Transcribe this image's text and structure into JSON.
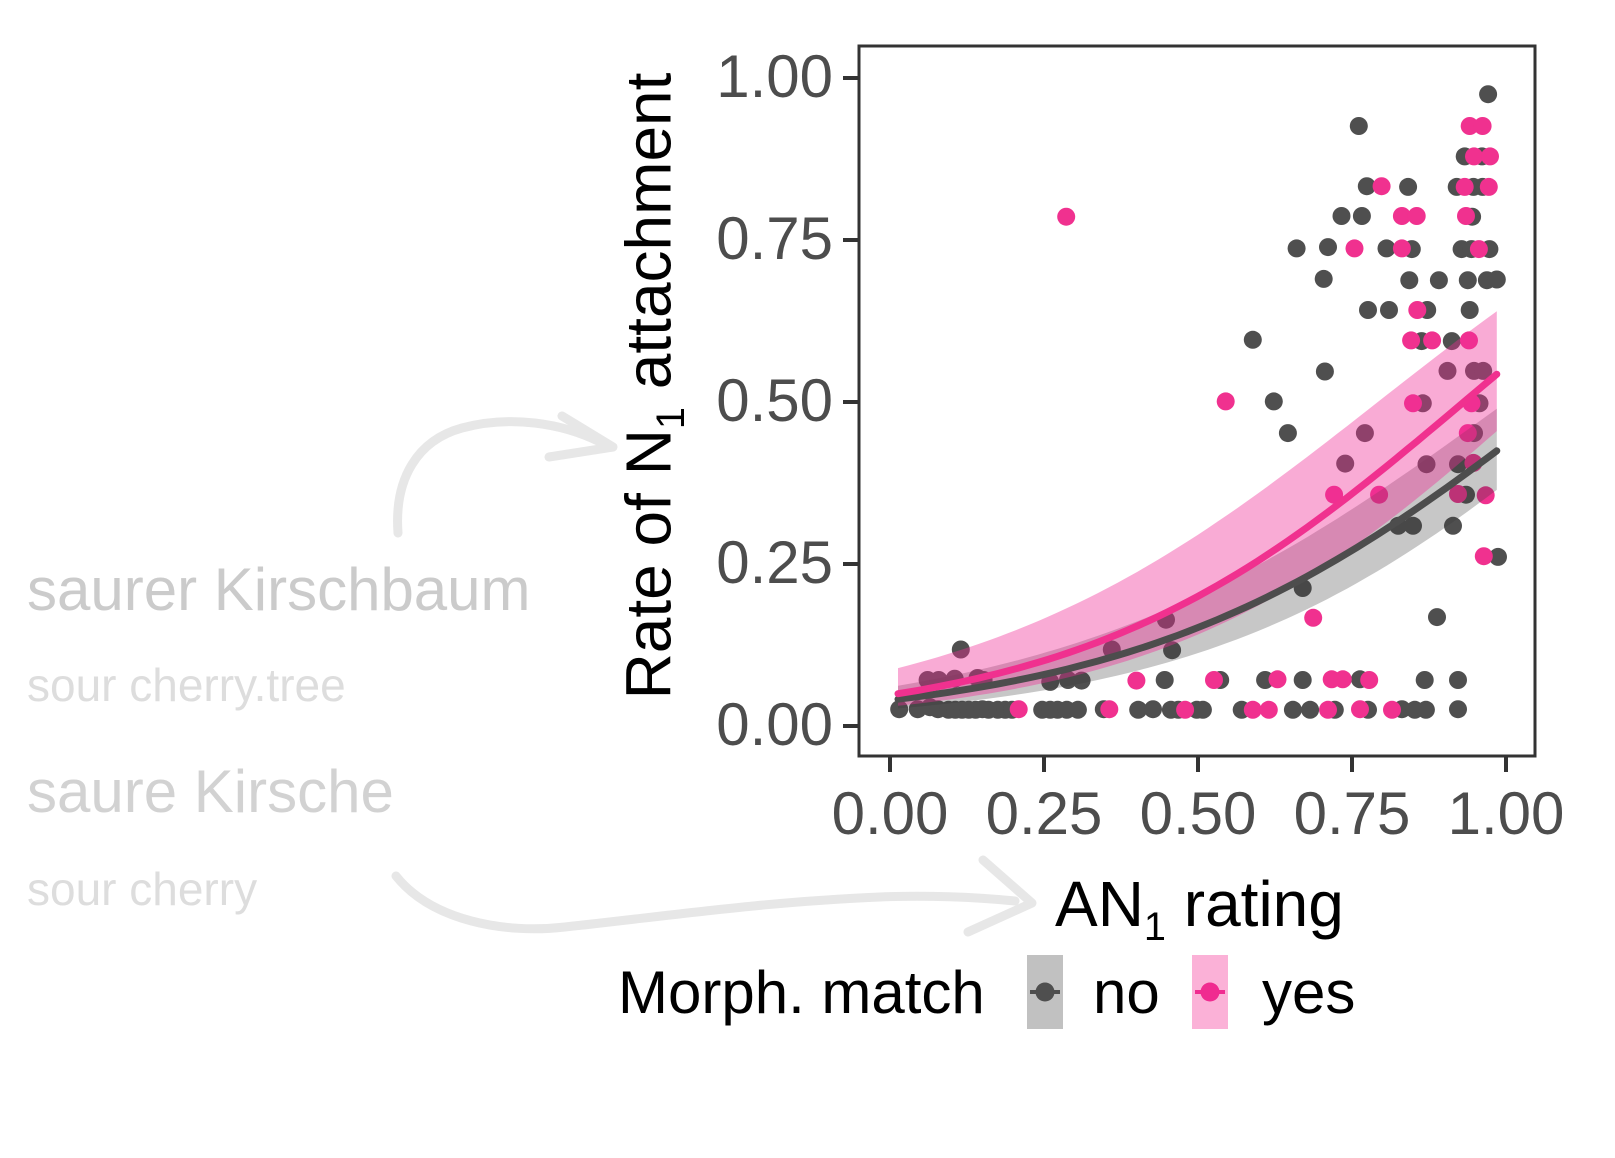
{
  "annotations": {
    "german_tree": "saurer Kirschbaum",
    "gloss_tree": "sour cherry.tree",
    "german_fruit": "saure Kirsche",
    "gloss_fruit": "sour cherry"
  },
  "axes": {
    "y_title_main": "Rate of N",
    "y_title_sub": "1",
    "y_title_rest": " attachment",
    "x_title_main": "AN",
    "x_title_sub": "1",
    "x_title_rest": " rating"
  },
  "legend": {
    "title": "Morph. match",
    "items": [
      {
        "label": "no",
        "key_bg": "#C1C1C1",
        "key_fg": "#4F4F4F"
      },
      {
        "label": "yes",
        "key_bg": "#FBB1D7",
        "key_fg": "#F02B90"
      }
    ]
  },
  "colors": {
    "gray_point": "#4F4F4F",
    "pink_point": "#F0318F",
    "gray_line": "#4D4D4D",
    "pink_line": "#F0318F",
    "gray_ribbon": "rgba(55,55,55,0.28)",
    "pink_ribbon": "rgba(240,45,150,0.40)",
    "axis_text": "#4D4D4D",
    "panel_border": "#333333",
    "tick_mark": "#333333",
    "arrow": "#E7E7E7"
  },
  "chart_data": {
    "type": "scatter",
    "title": "",
    "xlabel": "AN1 rating",
    "ylabel": "Rate of N1 attachment",
    "xlim": [
      0,
      1
    ],
    "ylim": [
      0,
      1
    ],
    "grid": false,
    "legend_position": "bottom",
    "legend_title": "Morph. match",
    "x_ticks": [
      0.0,
      0.25,
      0.5,
      0.75,
      1.0
    ],
    "x_tick_labels": [
      "0.00",
      "0.25",
      "0.50",
      "0.75",
      "1.00"
    ],
    "y_ticks": [
      0.0,
      0.25,
      0.5,
      0.75,
      1.0
    ],
    "y_tick_labels": [
      "0.00",
      "0.25",
      "0.50",
      "0.75",
      "1.00"
    ],
    "fit_model": "logistic y = 1/(1+exp(-(a+b*x))) with confidence ribbon",
    "fit_x_range": [
      0.013,
      0.985
    ],
    "series": [
      {
        "name": "no",
        "fit": {
          "a": -3.18,
          "b": 2.92,
          "upper": {
            "a": -2.75,
            "b": 2.75
          },
          "lower": {
            "a": -3.62,
            "b": 3.11
          }
        },
        "points": [
          [
            0.971,
            0.975
          ],
          [
            0.761,
            0.926
          ],
          [
            0.933,
            0.879
          ],
          [
            0.961,
            0.879
          ],
          [
            0.774,
            0.833
          ],
          [
            0.841,
            0.832
          ],
          [
            0.92,
            0.832
          ],
          [
            0.947,
            0.832
          ],
          [
            0.962,
            0.832
          ],
          [
            0.733,
            0.787
          ],
          [
            0.766,
            0.787
          ],
          [
            0.945,
            0.786
          ],
          [
            0.66,
            0.737
          ],
          [
            0.711,
            0.739
          ],
          [
            0.806,
            0.737
          ],
          [
            0.847,
            0.736
          ],
          [
            0.928,
            0.736
          ],
          [
            0.944,
            0.736
          ],
          [
            0.973,
            0.736
          ],
          [
            0.704,
            0.69
          ],
          [
            0.843,
            0.688
          ],
          [
            0.891,
            0.688
          ],
          [
            0.938,
            0.688
          ],
          [
            0.969,
            0.688
          ],
          [
            0.985,
            0.689
          ],
          [
            0.776,
            0.642
          ],
          [
            0.81,
            0.642
          ],
          [
            0.872,
            0.642
          ],
          [
            0.941,
            0.642
          ],
          [
            0.589,
            0.596
          ],
          [
            0.863,
            0.594
          ],
          [
            0.912,
            0.594
          ],
          [
            0.706,
            0.547
          ],
          [
            0.905,
            0.548
          ],
          [
            0.948,
            0.548
          ],
          [
            0.963,
            0.548
          ],
          [
            0.623,
            0.501
          ],
          [
            0.865,
            0.498
          ],
          [
            0.957,
            0.498
          ],
          [
            0.646,
            0.452
          ],
          [
            0.771,
            0.452
          ],
          [
            0.948,
            0.452
          ],
          [
            0.739,
            0.405
          ],
          [
            0.871,
            0.404
          ],
          [
            0.922,
            0.404
          ],
          [
            0.935,
            0.357
          ],
          [
            0.825,
            0.309
          ],
          [
            0.849,
            0.309
          ],
          [
            0.914,
            0.309
          ],
          [
            0.987,
            0.261
          ],
          [
            0.67,
            0.213
          ],
          [
            0.888,
            0.168
          ],
          [
            0.448,
            0.164
          ],
          [
            0.115,
            0.118
          ],
          [
            0.36,
            0.118
          ],
          [
            0.458,
            0.117
          ],
          [
            0.061,
            0.071
          ],
          [
            0.079,
            0.071
          ],
          [
            0.105,
            0.073
          ],
          [
            0.142,
            0.074
          ],
          [
            0.152,
            0.071
          ],
          [
            0.26,
            0.068
          ],
          [
            0.289,
            0.071
          ],
          [
            0.311,
            0.07
          ],
          [
            0.446,
            0.071
          ],
          [
            0.536,
            0.071
          ],
          [
            0.609,
            0.071
          ],
          [
            0.67,
            0.071
          ],
          [
            0.763,
            0.072
          ],
          [
            0.868,
            0.071
          ],
          [
            0.922,
            0.071
          ],
          [
            0.015,
            0.026
          ],
          [
            0.045,
            0.026
          ],
          [
            0.065,
            0.029
          ],
          [
            0.078,
            0.026
          ],
          [
            0.095,
            0.025
          ],
          [
            0.106,
            0.025
          ],
          [
            0.117,
            0.025
          ],
          [
            0.128,
            0.025
          ],
          [
            0.139,
            0.025
          ],
          [
            0.15,
            0.026
          ],
          [
            0.16,
            0.025
          ],
          [
            0.175,
            0.025
          ],
          [
            0.187,
            0.025
          ],
          [
            0.198,
            0.025
          ],
          [
            0.247,
            0.025
          ],
          [
            0.26,
            0.025
          ],
          [
            0.272,
            0.025
          ],
          [
            0.287,
            0.025
          ],
          [
            0.305,
            0.025
          ],
          [
            0.347,
            0.026
          ],
          [
            0.403,
            0.025
          ],
          [
            0.427,
            0.026
          ],
          [
            0.456,
            0.025
          ],
          [
            0.468,
            0.025
          ],
          [
            0.498,
            0.025
          ],
          [
            0.508,
            0.025
          ],
          [
            0.571,
            0.025
          ],
          [
            0.654,
            0.025
          ],
          [
            0.682,
            0.025
          ],
          [
            0.722,
            0.025
          ],
          [
            0.776,
            0.025
          ],
          [
            0.831,
            0.026
          ],
          [
            0.852,
            0.025
          ],
          [
            0.87,
            0.025
          ],
          [
            0.922,
            0.026
          ]
        ]
      },
      {
        "name": "yes",
        "fit": {
          "a": -2.99,
          "b": 3.21,
          "upper": {
            "a": -2.36,
            "b": 2.98
          },
          "lower": {
            "a": -3.48,
            "b": 3.35
          }
        },
        "points": [
          [
            0.286,
            0.786
          ],
          [
            0.941,
            0.926
          ],
          [
            0.962,
            0.926
          ],
          [
            0.948,
            0.879
          ],
          [
            0.974,
            0.879
          ],
          [
            0.798,
            0.833
          ],
          [
            0.933,
            0.832
          ],
          [
            0.972,
            0.832
          ],
          [
            0.831,
            0.787
          ],
          [
            0.855,
            0.787
          ],
          [
            0.935,
            0.787
          ],
          [
            0.754,
            0.737
          ],
          [
            0.831,
            0.737
          ],
          [
            0.956,
            0.736
          ],
          [
            0.856,
            0.642
          ],
          [
            0.846,
            0.595
          ],
          [
            0.88,
            0.595
          ],
          [
            0.94,
            0.595
          ],
          [
            0.545,
            0.501
          ],
          [
            0.849,
            0.498
          ],
          [
            0.944,
            0.498
          ],
          [
            0.938,
            0.452
          ],
          [
            0.947,
            0.406
          ],
          [
            0.721,
            0.357
          ],
          [
            0.794,
            0.357
          ],
          [
            0.922,
            0.358
          ],
          [
            0.967,
            0.356
          ],
          [
            0.964,
            0.262
          ],
          [
            0.687,
            0.167
          ],
          [
            0.4,
            0.07
          ],
          [
            0.526,
            0.071
          ],
          [
            0.629,
            0.072
          ],
          [
            0.717,
            0.072
          ],
          [
            0.735,
            0.072
          ],
          [
            0.778,
            0.071
          ],
          [
            0.209,
            0.026
          ],
          [
            0.356,
            0.026
          ],
          [
            0.479,
            0.025
          ],
          [
            0.589,
            0.025
          ],
          [
            0.615,
            0.025
          ],
          [
            0.711,
            0.025
          ],
          [
            0.763,
            0.026
          ],
          [
            0.815,
            0.025
          ]
        ]
      }
    ]
  }
}
